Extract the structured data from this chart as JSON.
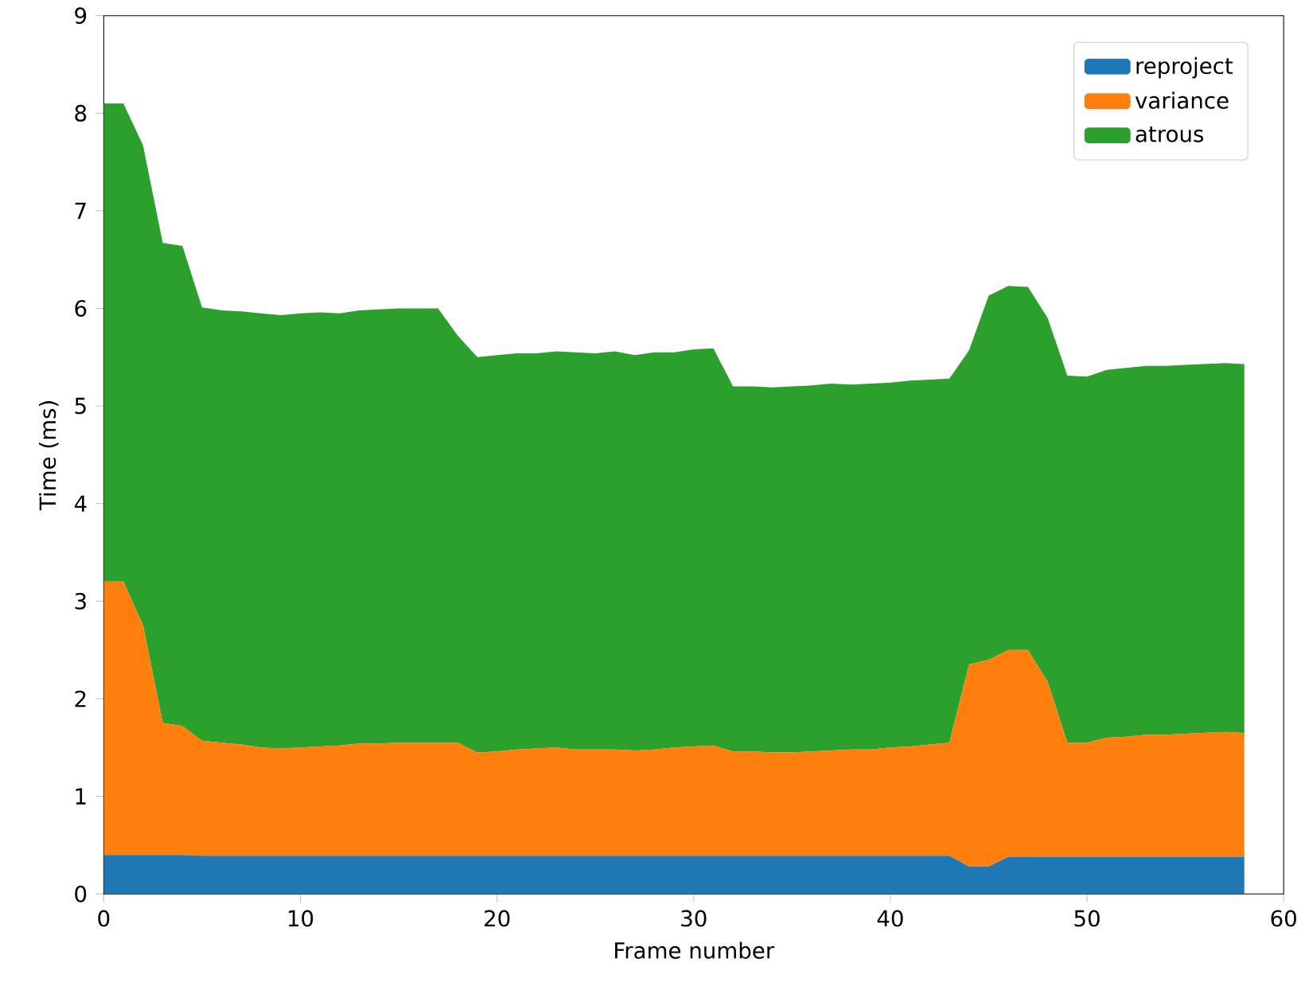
{
  "chart_data": {
    "type": "area",
    "stacked": true,
    "xlabel": "Frame number",
    "ylabel": "Time (ms)",
    "x": [
      0,
      1,
      2,
      3,
      4,
      5,
      6,
      7,
      8,
      9,
      10,
      11,
      12,
      13,
      14,
      15,
      16,
      17,
      18,
      19,
      20,
      21,
      22,
      23,
      24,
      25,
      26,
      27,
      28,
      29,
      30,
      31,
      32,
      33,
      34,
      35,
      36,
      37,
      38,
      39,
      40,
      41,
      42,
      43,
      44,
      45,
      46,
      47,
      48,
      49,
      50,
      51,
      52,
      53,
      54,
      55,
      56,
      57,
      58
    ],
    "series": [
      {
        "name": "reproject",
        "color": "#1f77b4",
        "values": [
          0.4,
          0.4,
          0.4,
          0.4,
          0.4,
          0.39,
          0.39,
          0.39,
          0.39,
          0.39,
          0.39,
          0.39,
          0.39,
          0.39,
          0.39,
          0.39,
          0.39,
          0.39,
          0.39,
          0.39,
          0.39,
          0.39,
          0.39,
          0.39,
          0.39,
          0.39,
          0.39,
          0.39,
          0.39,
          0.39,
          0.39,
          0.39,
          0.39,
          0.39,
          0.39,
          0.39,
          0.39,
          0.39,
          0.39,
          0.39,
          0.39,
          0.39,
          0.39,
          0.39,
          0.28,
          0.28,
          0.38,
          0.38,
          0.38,
          0.38,
          0.38,
          0.38,
          0.38,
          0.38,
          0.38,
          0.38,
          0.38,
          0.38,
          0.38
        ]
      },
      {
        "name": "variance",
        "color": "#ff7f0e",
        "values": [
          2.8,
          2.8,
          2.35,
          1.35,
          1.32,
          1.18,
          1.16,
          1.14,
          1.11,
          1.1,
          1.11,
          1.12,
          1.13,
          1.15,
          1.15,
          1.16,
          1.16,
          1.16,
          1.16,
          1.06,
          1.07,
          1.09,
          1.1,
          1.11,
          1.09,
          1.09,
          1.09,
          1.08,
          1.09,
          1.11,
          1.12,
          1.13,
          1.07,
          1.07,
          1.06,
          1.06,
          1.07,
          1.08,
          1.09,
          1.09,
          1.11,
          1.12,
          1.14,
          1.16,
          2.07,
          2.12,
          2.12,
          2.12,
          1.79,
          1.17,
          1.17,
          1.22,
          1.23,
          1.25,
          1.25,
          1.26,
          1.27,
          1.28,
          1.27
        ]
      },
      {
        "name": "atrous",
        "color": "#2ca02c",
        "values": [
          4.9,
          4.9,
          4.92,
          4.92,
          4.92,
          4.44,
          4.43,
          4.44,
          4.45,
          4.44,
          4.45,
          4.45,
          4.43,
          4.44,
          4.45,
          4.45,
          4.45,
          4.45,
          4.17,
          4.05,
          4.06,
          4.06,
          4.05,
          4.06,
          4.07,
          4.06,
          4.08,
          4.05,
          4.07,
          4.05,
          4.07,
          4.07,
          3.74,
          3.74,
          3.74,
          3.75,
          3.75,
          3.76,
          3.74,
          3.75,
          3.74,
          3.75,
          3.74,
          3.73,
          3.22,
          3.73,
          3.73,
          3.72,
          3.73,
          3.76,
          3.75,
          3.77,
          3.78,
          3.78,
          3.78,
          3.78,
          3.78,
          3.78,
          3.78
        ]
      }
    ],
    "xlim": [
      0,
      60
    ],
    "ylim": [
      0,
      9
    ],
    "xticks": [
      0,
      10,
      20,
      30,
      40,
      50,
      60
    ],
    "yticks": [
      0,
      1,
      2,
      3,
      4,
      5,
      6,
      7,
      8,
      9
    ],
    "legend": "top right"
  }
}
